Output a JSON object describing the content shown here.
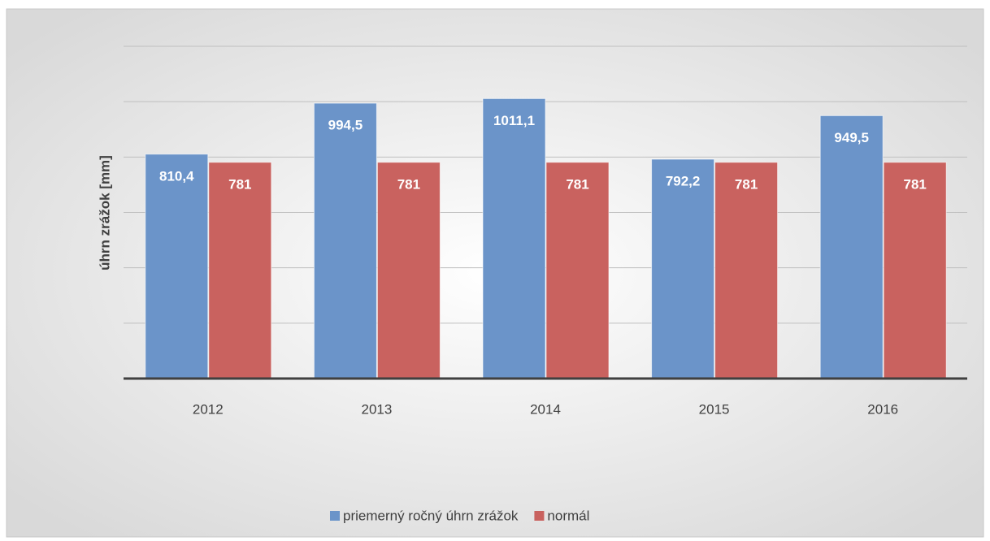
{
  "chart_data": {
    "type": "bar",
    "y_label": "úhrn zrážok [mm]",
    "categories": [
      "2012",
      "2013",
      "2014",
      "2015",
      "2016"
    ],
    "series": [
      {
        "name": "priemerný ročný úhrn zrážok",
        "color": "#6b94c9",
        "values": [
          810.4,
          994.5,
          1011.1,
          792.2,
          949.5
        ],
        "value_labels": [
          "810,4",
          "994,5",
          "1011,1",
          "792,2",
          "949,5"
        ]
      },
      {
        "name": "normál",
        "color": "#c9625f",
        "values": [
          781,
          781,
          781,
          781,
          781
        ],
        "value_labels": [
          "781",
          "781",
          "781",
          "781",
          "781"
        ]
      }
    ],
    "ylim": [
      0,
      1200
    ],
    "yticks": [
      0,
      200,
      400,
      600,
      800,
      1000,
      1200
    ],
    "grid": true,
    "legend": "bottom"
  }
}
